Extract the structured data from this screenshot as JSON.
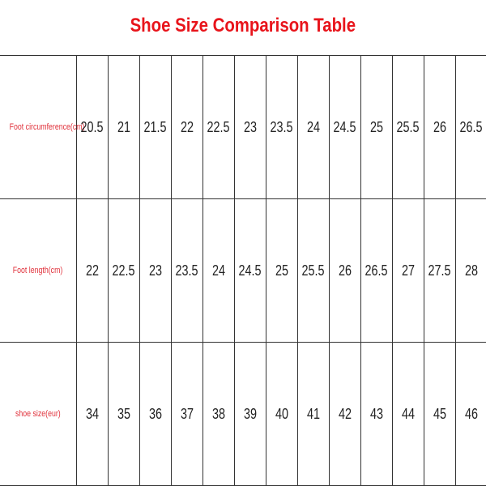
{
  "title": "Shoe Size Comparison Table",
  "rows": [
    {
      "label": "Foot circumference(cm)",
      "values": [
        "20.5",
        "21",
        "21.5",
        "22",
        "22.5",
        "23",
        "23.5",
        "24",
        "24.5",
        "25",
        "25.5",
        "26",
        "26.5"
      ]
    },
    {
      "label": "Foot length(cm)",
      "values": [
        "22",
        "22.5",
        "23",
        "23.5",
        "24",
        "24.5",
        "25",
        "25.5",
        "26",
        "26.5",
        "27",
        "27.5",
        "28"
      ]
    },
    {
      "label": "shoe size(eur)",
      "values": [
        "34",
        "35",
        "36",
        "37",
        "38",
        "39",
        "40",
        "41",
        "42",
        "43",
        "44",
        "45",
        "46"
      ]
    }
  ],
  "colors": {
    "title": "#e8141b",
    "label": "#e0303a",
    "text": "#222222",
    "border": "#333333"
  }
}
